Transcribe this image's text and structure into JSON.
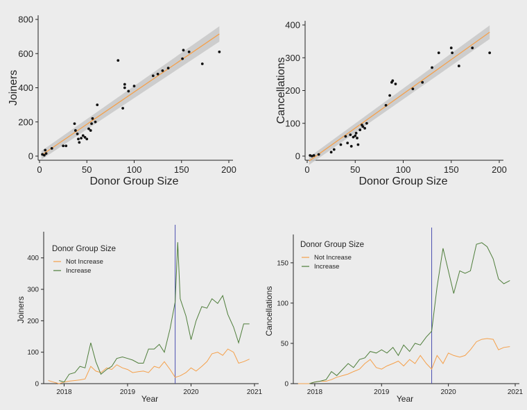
{
  "chart_data": [
    {
      "type": "scatter",
      "xlabel": "Donor Group Size",
      "ylabel": "Joiners",
      "xlim": [
        0,
        200
      ],
      "ylim": [
        0,
        800
      ],
      "xticks": [
        "0",
        "50",
        "100",
        "150",
        "200"
      ],
      "yticks": [
        "0",
        "200",
        "400",
        "600",
        "800"
      ],
      "fit": {
        "x0": 2,
        "x1": 190,
        "y0": 5,
        "y1": 715,
        "band": 28
      },
      "points": [
        [
          3,
          10
        ],
        [
          5,
          5
        ],
        [
          6,
          35
        ],
        [
          7,
          15
        ],
        [
          13,
          45
        ],
        [
          25,
          60
        ],
        [
          28,
          60
        ],
        [
          37,
          190
        ],
        [
          38,
          150
        ],
        [
          40,
          130
        ],
        [
          41,
          100
        ],
        [
          42,
          80
        ],
        [
          44,
          105
        ],
        [
          46,
          120
        ],
        [
          48,
          110
        ],
        [
          50,
          100
        ],
        [
          52,
          160
        ],
        [
          54,
          150
        ],
        [
          55,
          190
        ],
        [
          56,
          220
        ],
        [
          59,
          200
        ],
        [
          61,
          300
        ],
        [
          83,
          560
        ],
        [
          88,
          280
        ],
        [
          90,
          420
        ],
        [
          90,
          400
        ],
        [
          94,
          380
        ],
        [
          100,
          410
        ],
        [
          120,
          470
        ],
        [
          125,
          480
        ],
        [
          130,
          500
        ],
        [
          136,
          515
        ],
        [
          151,
          570
        ],
        [
          152,
          620
        ],
        [
          158,
          610
        ],
        [
          172,
          540
        ],
        [
          190,
          610
        ]
      ],
      "colors": {
        "points": "#111111",
        "fit": "#f5a04a",
        "band": "#c8c8c8"
      }
    },
    {
      "type": "scatter",
      "xlabel": "Donor Group Size",
      "ylabel": "Cancellations",
      "xlim": [
        0,
        200
      ],
      "ylim": [
        0,
        400
      ],
      "xticks": [
        "0",
        "50",
        "100",
        "150",
        "200"
      ],
      "yticks": [
        "0",
        "100",
        "200",
        "300",
        "400"
      ],
      "fit": {
        "x0": 2,
        "x1": 190,
        "y0": -15,
        "y1": 378,
        "band": 13
      },
      "points": [
        [
          3,
          2
        ],
        [
          5,
          0
        ],
        [
          7,
          2
        ],
        [
          12,
          5
        ],
        [
          25,
          12
        ],
        [
          28,
          20
        ],
        [
          35,
          35
        ],
        [
          40,
          60
        ],
        [
          42,
          40
        ],
        [
          45,
          65
        ],
        [
          46,
          30
        ],
        [
          48,
          58
        ],
        [
          50,
          62
        ],
        [
          51,
          70
        ],
        [
          52,
          55
        ],
        [
          53,
          35
        ],
        [
          55,
          80
        ],
        [
          57,
          95
        ],
        [
          58,
          90
        ],
        [
          60,
          85
        ],
        [
          62,
          100
        ],
        [
          82,
          155
        ],
        [
          86,
          185
        ],
        [
          88,
          225
        ],
        [
          89,
          230
        ],
        [
          92,
          220
        ],
        [
          110,
          205
        ],
        [
          120,
          225
        ],
        [
          130,
          270
        ],
        [
          137,
          315
        ],
        [
          150,
          330
        ],
        [
          151,
          315
        ],
        [
          158,
          275
        ],
        [
          172,
          330
        ],
        [
          190,
          315
        ]
      ],
      "colors": {
        "points": "#111111",
        "fit": "#f5a04a",
        "band": "#c8c8c8"
      }
    },
    {
      "type": "line",
      "xlabel": "Year",
      "ylabel": "Joiners",
      "xlim": [
        2017.7,
        2021.0
      ],
      "ylim": [
        0,
        470
      ],
      "xticks": [
        "2018",
        "2019",
        "2020",
        "2021"
      ],
      "yticks": [
        "0",
        "100",
        "200",
        "300",
        "400"
      ],
      "vline_x": 2019.75,
      "legend_title": "Donor Group Size",
      "legend_position": "top-left",
      "series": [
        {
          "name": "Not Increase",
          "color": "#f5a04a",
          "x": [
            2017.75,
            2017.83,
            2017.92,
            2018.0,
            2018.08,
            2018.17,
            2018.25,
            2018.33,
            2018.42,
            2018.5,
            2018.58,
            2018.67,
            2018.75,
            2018.83,
            2018.92,
            2019.0,
            2019.08,
            2019.17,
            2019.25,
            2019.33,
            2019.42,
            2019.5,
            2019.58,
            2019.67,
            2019.75,
            2019.83,
            2019.92,
            2020.0,
            2020.08,
            2020.17,
            2020.25,
            2020.33,
            2020.42,
            2020.5,
            2020.58,
            2020.67,
            2020.75,
            2020.83,
            2020.92
          ],
          "values": [
            10,
            5,
            0,
            5,
            8,
            10,
            12,
            15,
            55,
            40,
            35,
            50,
            45,
            60,
            50,
            45,
            35,
            38,
            40,
            35,
            55,
            50,
            70,
            45,
            20,
            25,
            35,
            50,
            40,
            55,
            70,
            95,
            100,
            90,
            110,
            100,
            65,
            70,
            78
          ]
        },
        {
          "name": "Increase",
          "color": "#4e7d3a",
          "x": [
            2017.92,
            2018.0,
            2018.08,
            2018.17,
            2018.25,
            2018.33,
            2018.42,
            2018.5,
            2018.58,
            2018.67,
            2018.75,
            2018.83,
            2018.92,
            2019.0,
            2019.08,
            2019.17,
            2019.25,
            2019.33,
            2019.42,
            2019.5,
            2019.58,
            2019.67,
            2019.75,
            2019.79,
            2019.83,
            2019.92,
            2020.0,
            2020.08,
            2020.17,
            2020.25,
            2020.33,
            2020.42,
            2020.5,
            2020.58,
            2020.67,
            2020.75,
            2020.83,
            2020.92
          ],
          "values": [
            10,
            5,
            30,
            35,
            55,
            50,
            130,
            70,
            30,
            45,
            55,
            80,
            85,
            80,
            75,
            65,
            65,
            110,
            110,
            125,
            100,
            175,
            260,
            450,
            270,
            215,
            140,
            200,
            245,
            240,
            270,
            255,
            280,
            220,
            180,
            130,
            190,
            190
          ]
        }
      ]
    },
    {
      "type": "line",
      "xlabel": "Year",
      "ylabel": "Cancellations",
      "xlim": [
        2017.7,
        2021.0
      ],
      "ylim": [
        0,
        180
      ],
      "xticks": [
        "2018",
        "2019",
        "2020",
        "2021"
      ],
      "yticks": [
        "0",
        "50",
        "100",
        "150"
      ],
      "vline_x": 2019.75,
      "legend_title": "Donor Group Size",
      "legend_position": "top-left",
      "series": [
        {
          "name": "Not Increase",
          "color": "#f5a04a",
          "x": [
            2017.75,
            2017.83,
            2017.92,
            2018.0,
            2018.08,
            2018.17,
            2018.25,
            2018.33,
            2018.42,
            2018.5,
            2018.58,
            2018.67,
            2018.75,
            2018.83,
            2018.92,
            2019.0,
            2019.08,
            2019.17,
            2019.25,
            2019.33,
            2019.42,
            2019.5,
            2019.58,
            2019.67,
            2019.75,
            2019.83,
            2019.92,
            2020.0,
            2020.08,
            2020.17,
            2020.25,
            2020.33,
            2020.42,
            2020.5,
            2020.58,
            2020.67,
            2020.75,
            2020.83,
            2020.92
          ],
          "values": [
            0,
            0,
            0,
            2,
            3,
            3,
            5,
            8,
            10,
            12,
            15,
            18,
            25,
            30,
            20,
            18,
            22,
            25,
            28,
            22,
            30,
            25,
            35,
            25,
            18,
            35,
            25,
            38,
            35,
            33,
            35,
            42,
            52,
            55,
            56,
            55,
            42,
            45,
            46
          ]
        },
        {
          "name": "Increase",
          "color": "#4e7d3a",
          "x": [
            2017.92,
            2018.0,
            2018.08,
            2018.17,
            2018.25,
            2018.33,
            2018.42,
            2018.5,
            2018.58,
            2018.67,
            2018.75,
            2018.83,
            2018.92,
            2019.0,
            2019.08,
            2019.17,
            2019.25,
            2019.33,
            2019.42,
            2019.5,
            2019.58,
            2019.67,
            2019.75,
            2019.83,
            2019.92,
            2020.0,
            2020.08,
            2020.17,
            2020.25,
            2020.33,
            2020.42,
            2020.5,
            2020.58,
            2020.67,
            2020.75,
            2020.83,
            2020.92
          ],
          "values": [
            0,
            2,
            3,
            5,
            15,
            10,
            18,
            25,
            20,
            30,
            32,
            40,
            38,
            42,
            38,
            45,
            35,
            48,
            40,
            50,
            48,
            58,
            65,
            120,
            168,
            140,
            112,
            140,
            137,
            140,
            173,
            175,
            170,
            155,
            130,
            124,
            128
          ]
        }
      ]
    }
  ]
}
